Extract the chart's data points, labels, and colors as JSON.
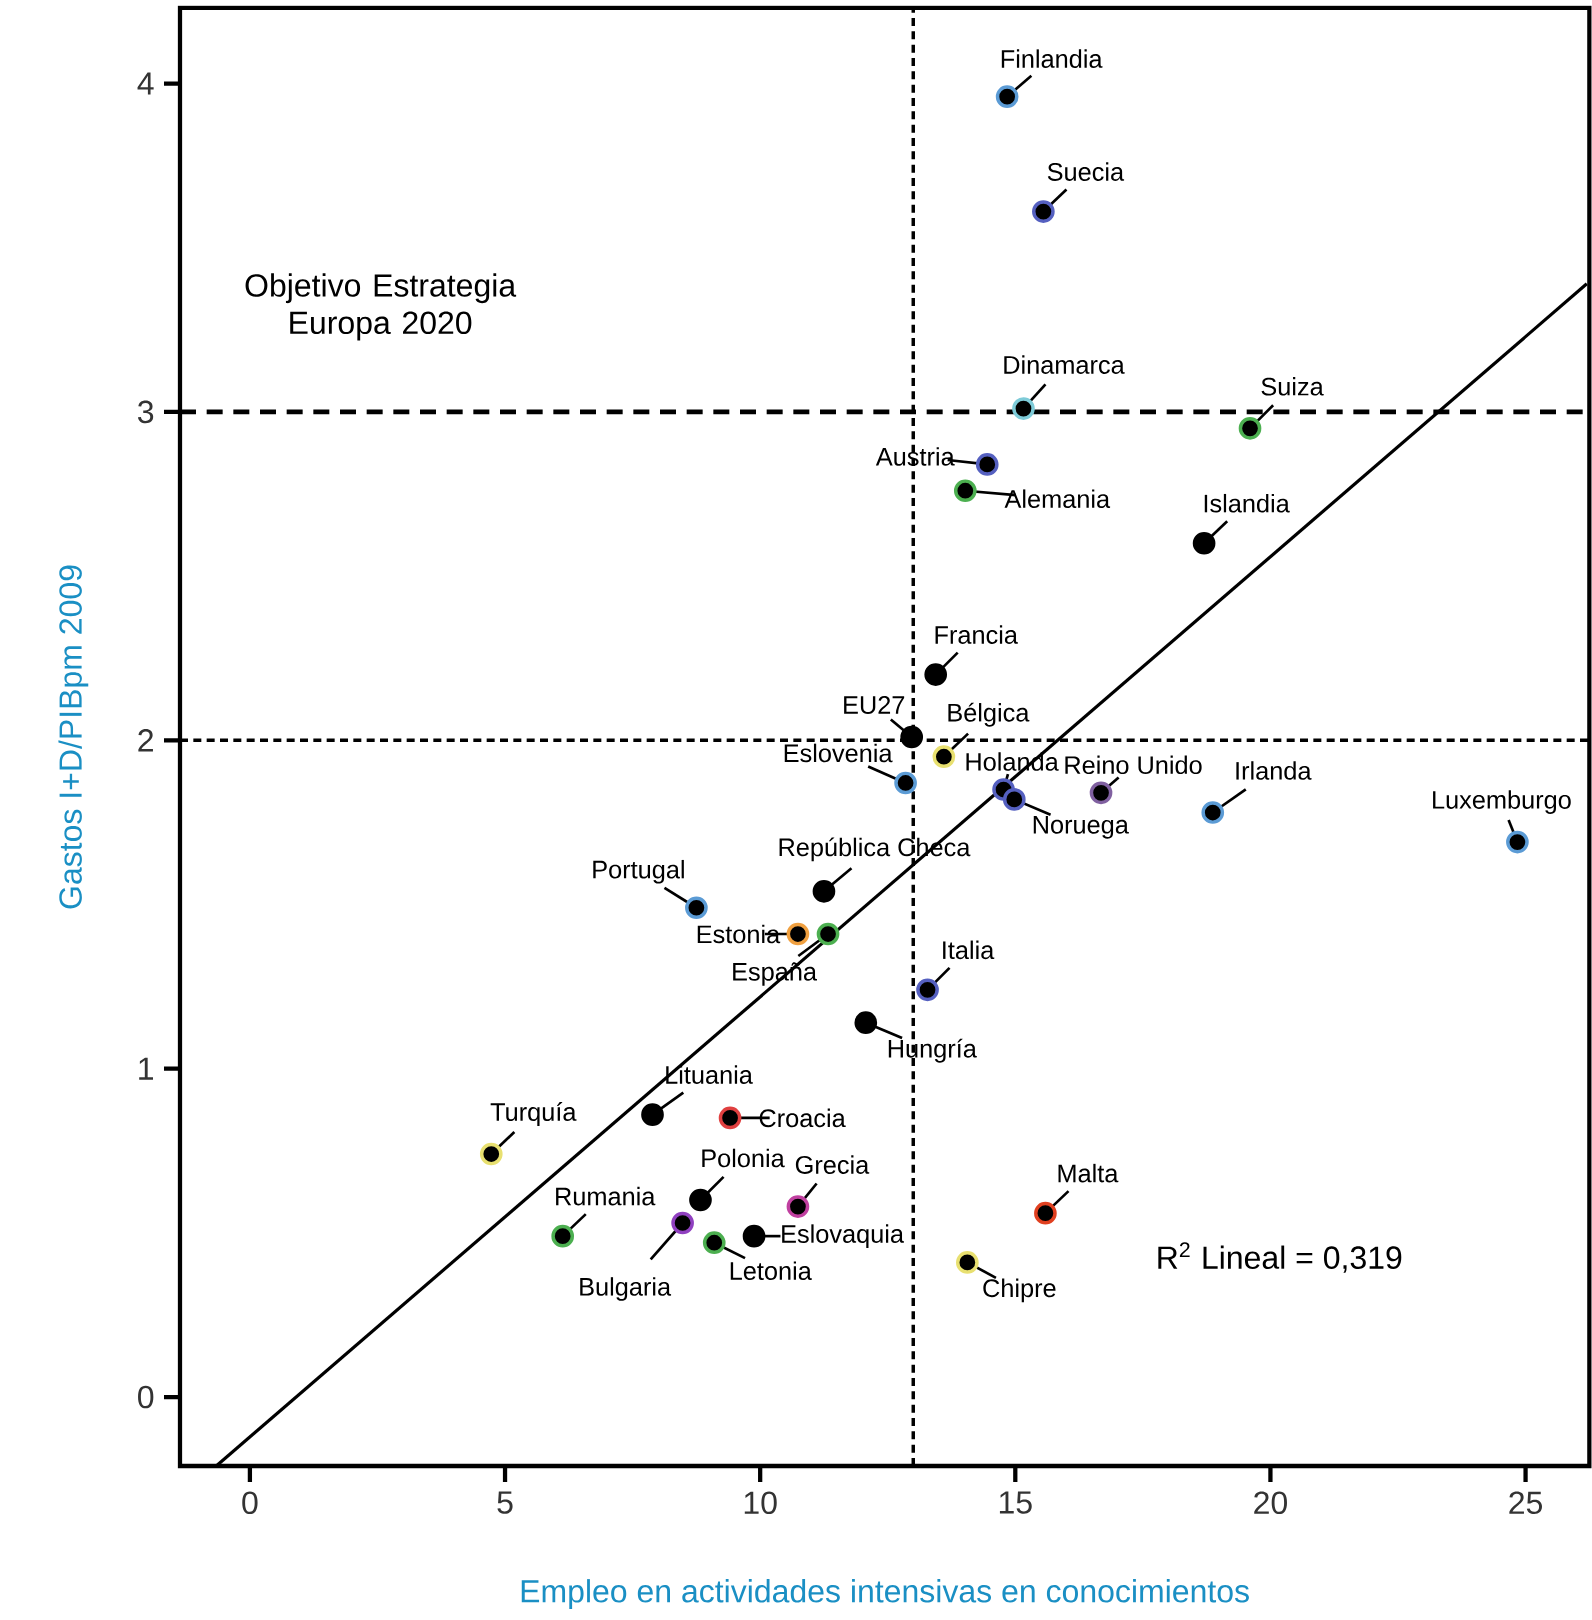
{
  "chart_data": {
    "type": "scatter",
    "xlabel": "Empleo en actividades intensivas en conocimientos",
    "ylabel": "Gastos I+D/PIBpm 2009",
    "xlim": [
      -1.37,
      26.25
    ],
    "ylim": [
      -0.21,
      4.23
    ],
    "xticks": [
      0,
      5,
      10,
      15,
      20,
      25
    ],
    "yticks": [
      0,
      1,
      2,
      3,
      4
    ],
    "grid": false,
    "marker": "circle",
    "series": [
      {
        "x": [
          14.84,
          15.55,
          15.16,
          19.6,
          14.45,
          14.02,
          18.7,
          13.44,
          12.97,
          13.6,
          12.85,
          14.77,
          14.98,
          16.68,
          18.87,
          24.84,
          8.75,
          11.25,
          10.74,
          11.33,
          12.07,
          13.28,
          7.89,
          9.41,
          4.73,
          8.83,
          10.74,
          6.13,
          8.48,
          9.1,
          9.88,
          15.59,
          14.06
        ],
        "values": [
          3.96,
          3.61,
          3.01,
          2.95,
          2.84,
          2.76,
          2.6,
          2.2,
          2.01,
          1.95,
          1.87,
          1.85,
          1.82,
          1.84,
          1.78,
          1.69,
          1.49,
          1.54,
          1.41,
          1.41,
          1.14,
          1.24,
          0.86,
          0.85,
          0.74,
          0.6,
          0.58,
          0.49,
          0.53,
          0.47,
          0.49,
          0.56,
          0.41
        ],
        "colors": [
          "#5b9bd5",
          "#5560c0",
          "#7ecbd8",
          "#4caf50",
          "#5560c0",
          "#4caf50",
          "#000000",
          "#000000",
          "#000000",
          "#e8e070",
          "#5b9bd5",
          "#5560c0",
          "#5560c0",
          "#8060a0",
          "#5b9bd5",
          "#5b9bd5",
          "#5b9bd5",
          "#000000",
          "#f0a040",
          "#4caf50",
          "#000000",
          "#5560c0",
          "#000000",
          "#e04040",
          "#e8e070",
          "#000000",
          "#c040a0",
          "#4caf50",
          "#9040c0",
          "#4caf50",
          "#000000",
          "#e04020",
          "#e8e070"
        ]
      },
      {
        "type": "line",
        "marker": "none",
        "color": "#000000",
        "x": [
          -0.66,
          26.2
        ],
        "values": [
          -0.21,
          3.39
        ]
      }
    ],
    "ref_lines": [
      {
        "axis": "y",
        "value": 3,
        "line_style": "dashed"
      },
      {
        "axis": "y",
        "value": 2,
        "line_style": "dotted"
      },
      {
        "axis": "x",
        "value": 13,
        "line_style": "dotted"
      }
    ],
    "annotations": [
      {
        "text": "Finlandia",
        "x": 14.84,
        "y": 3.96
      },
      {
        "text": "Suecia",
        "x": 15.55,
        "y": 3.61
      },
      {
        "text": "Dinamarca",
        "x": 15.16,
        "y": 3.01
      },
      {
        "text": "Suiza",
        "x": 19.6,
        "y": 2.95
      },
      {
        "text": "Austria",
        "x": 14.45,
        "y": 2.84
      },
      {
        "text": "Alemania",
        "x": 14.02,
        "y": 2.76
      },
      {
        "text": "Islandia",
        "x": 18.7,
        "y": 2.6
      },
      {
        "text": "Francia",
        "x": 13.44,
        "y": 2.2
      },
      {
        "text": "EU27",
        "x": 12.97,
        "y": 2.01
      },
      {
        "text": "Bélgica",
        "x": 13.6,
        "y": 1.95
      },
      {
        "text": "Eslovenia",
        "x": 12.85,
        "y": 1.87
      },
      {
        "text": "Holanda",
        "x": 14.77,
        "y": 1.85
      },
      {
        "text": "Noruega",
        "x": 14.98,
        "y": 1.82
      },
      {
        "text": "Reino Unido",
        "x": 16.68,
        "y": 1.84
      },
      {
        "text": "Irlanda",
        "x": 18.87,
        "y": 1.78
      },
      {
        "text": "Luxemburgo",
        "x": 24.84,
        "y": 1.69
      },
      {
        "text": "Portugal",
        "x": 8.75,
        "y": 1.49
      },
      {
        "text": "República Checa",
        "x": 11.25,
        "y": 1.54
      },
      {
        "text": "Estonia",
        "x": 10.74,
        "y": 1.41
      },
      {
        "text": "España",
        "x": 11.33,
        "y": 1.41
      },
      {
        "text": "Hungría",
        "x": 12.07,
        "y": 1.14
      },
      {
        "text": "Italia",
        "x": 13.28,
        "y": 1.24
      },
      {
        "text": "Lituania",
        "x": 7.89,
        "y": 0.86
      },
      {
        "text": "Croacia",
        "x": 9.41,
        "y": 0.85
      },
      {
        "text": "Turquía",
        "x": 4.73,
        "y": 0.74
      },
      {
        "text": "Polonia",
        "x": 8.83,
        "y": 0.6
      },
      {
        "text": "Grecia",
        "x": 10.74,
        "y": 0.58
      },
      {
        "text": "Rumania",
        "x": 6.13,
        "y": 0.49
      },
      {
        "text": "Bulgaria",
        "x": 8.48,
        "y": 0.53
      },
      {
        "text": "Letonia",
        "x": 9.1,
        "y": 0.47
      },
      {
        "text": "Eslovaquia",
        "x": 9.88,
        "y": 0.49
      },
      {
        "text": "Malta",
        "x": 15.59,
        "y": 0.56
      },
      {
        "text": "Chipre",
        "x": 14.06,
        "y": 0.41
      },
      "Objetivo Estrategia Europa 2020",
      "R$^{2}$ Lineal = 0,319"
    ]
  }
}
